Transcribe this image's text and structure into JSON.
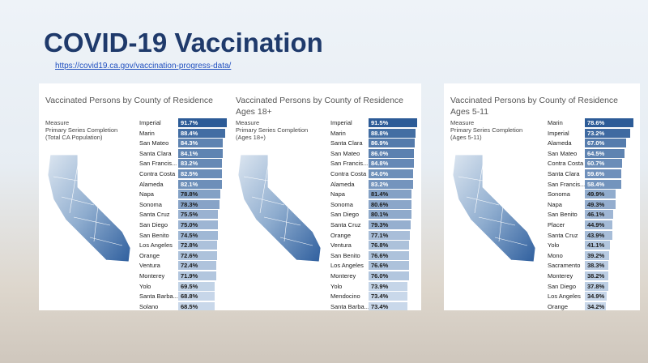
{
  "title": "COVID-19 Vaccination",
  "link": "https://covid19.ca.gov/vaccination-progress-data/",
  "chart_data": [
    {
      "type": "bar",
      "title": "Vaccinated Persons by County of Residence",
      "measure": [
        "Measure",
        "Primary Series Completion",
        "(Total CA Population)"
      ],
      "categories": [
        "Imperial",
        "Marin",
        "San Mateo",
        "Santa Clara",
        "San Francis...",
        "Contra Costa",
        "Alameda",
        "Napa",
        "Sonoma",
        "Santa Cruz",
        "San Diego",
        "San Benito",
        "Los Angeles",
        "Orange",
        "Ventura",
        "Monterey",
        "Yolo",
        "Santa Barba...",
        "Solano"
      ],
      "values": [
        91.7,
        88.4,
        84.3,
        84.1,
        83.2,
        82.5,
        82.1,
        78.8,
        78.3,
        75.5,
        75.0,
        74.5,
        72.8,
        72.6,
        72.4,
        71.9,
        69.5,
        68.8,
        68.5
      ],
      "value_labels": [
        "91.7%",
        "88.4%",
        "84.3%",
        "84.1%",
        "83.2%",
        "82.5%",
        "82.1%",
        "78.8%",
        "78.3%",
        "75.5%",
        "75.0%",
        "74.5%",
        "72.8%",
        "72.6%",
        "72.4%",
        "71.9%",
        "69.5%",
        "68.8%",
        "68.5%"
      ],
      "color_scale": [
        "#c9d8ea",
        "#2c5b97"
      ]
    },
    {
      "type": "bar",
      "title": "Vaccinated Persons by County of Residence Ages 18+",
      "measure": [
        "Measure",
        "Primary Series Completion",
        "(Ages 18+)"
      ],
      "categories": [
        "Imperial",
        "Marin",
        "Santa Clara",
        "San Mateo",
        "San Francis...",
        "Contra Costa",
        "Alameda",
        "Napa",
        "Sonoma",
        "San Diego",
        "Santa Cruz",
        "Orange",
        "Ventura",
        "San Benito",
        "Los Angeles",
        "Monterey",
        "Yolo",
        "Mendocino",
        "Santa Barba..."
      ],
      "values": [
        91.5,
        88.8,
        86.9,
        86.0,
        84.8,
        84.0,
        83.2,
        81.4,
        80.6,
        80.1,
        79.3,
        77.1,
        76.8,
        76.6,
        76.6,
        76.0,
        73.9,
        73.4,
        73.4
      ],
      "value_labels": [
        "91.5%",
        "88.8%",
        "86.9%",
        "86.0%",
        "84.8%",
        "84.0%",
        "83.2%",
        "81.4%",
        "80.6%",
        "80.1%",
        "79.3%",
        "77.1%",
        "76.8%",
        "76.6%",
        "76.6%",
        "76.0%",
        "73.9%",
        "73.4%",
        "73.4%"
      ],
      "color_scale": [
        "#c9d8ea",
        "#2c5b97"
      ]
    },
    {
      "type": "bar",
      "title": "Vaccinated Persons by County of Residence Ages 5-11",
      "measure": [
        "Measure",
        "Primary Series Completion",
        "(Ages 5-11)"
      ],
      "categories": [
        "Marin",
        "Imperial",
        "Alameda",
        "San Mateo",
        "Contra Costa",
        "Santa Clara",
        "San Francis...",
        "Sonoma",
        "Napa",
        "San Benito",
        "Placer",
        "Santa Cruz",
        "Yolo",
        "Mono",
        "Sacramento",
        "Monterey",
        "San Diego",
        "Los Angeles",
        "Orange"
      ],
      "values": [
        78.6,
        73.2,
        67.0,
        64.5,
        60.7,
        59.6,
        58.4,
        49.9,
        49.3,
        46.1,
        44.9,
        43.9,
        41.1,
        39.2,
        38.3,
        38.2,
        37.8,
        34.9,
        34.2
      ],
      "value_labels": [
        "78.6%",
        "73.2%",
        "67.0%",
        "64.5%",
        "60.7%",
        "59.6%",
        "58.4%",
        "49.9%",
        "49.3%",
        "46.1%",
        "44.9%",
        "43.9%",
        "41.1%",
        "39.2%",
        "38.3%",
        "38.2%",
        "37.8%",
        "34.9%",
        "34.2%"
      ],
      "color_scale": [
        "#c9d8ea",
        "#2c5b97"
      ]
    }
  ]
}
